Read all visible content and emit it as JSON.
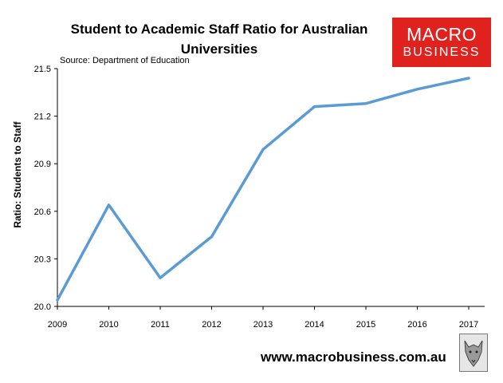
{
  "chart_data": {
    "type": "line",
    "title": "Student to Academic Staff Ratio for Australian Universities",
    "subtitle": "Source: Department of Education",
    "xlabel": "",
    "ylabel": "Ratio: Students to Staff",
    "x": [
      "2009",
      "2010",
      "2011",
      "2012",
      "2013",
      "2014",
      "2015",
      "2016",
      "2017"
    ],
    "values": [
      20.04,
      20.64,
      20.18,
      20.44,
      20.99,
      21.26,
      21.28,
      21.37,
      21.44
    ],
    "ylim": [
      20.0,
      21.5
    ],
    "yticks": [
      "20.0",
      "20.3",
      "20.6",
      "20.9",
      "21.2",
      "21.5"
    ],
    "line_color": "#5b9bd5",
    "grid": false,
    "legend": "none"
  },
  "logo": {
    "line1": "MACRO",
    "line2": "BUSINESS",
    "color": "#e0221f"
  },
  "footer": {
    "url": "www.macrobusiness.com.au"
  },
  "mascot": {
    "icon": "wolf-head-icon"
  }
}
